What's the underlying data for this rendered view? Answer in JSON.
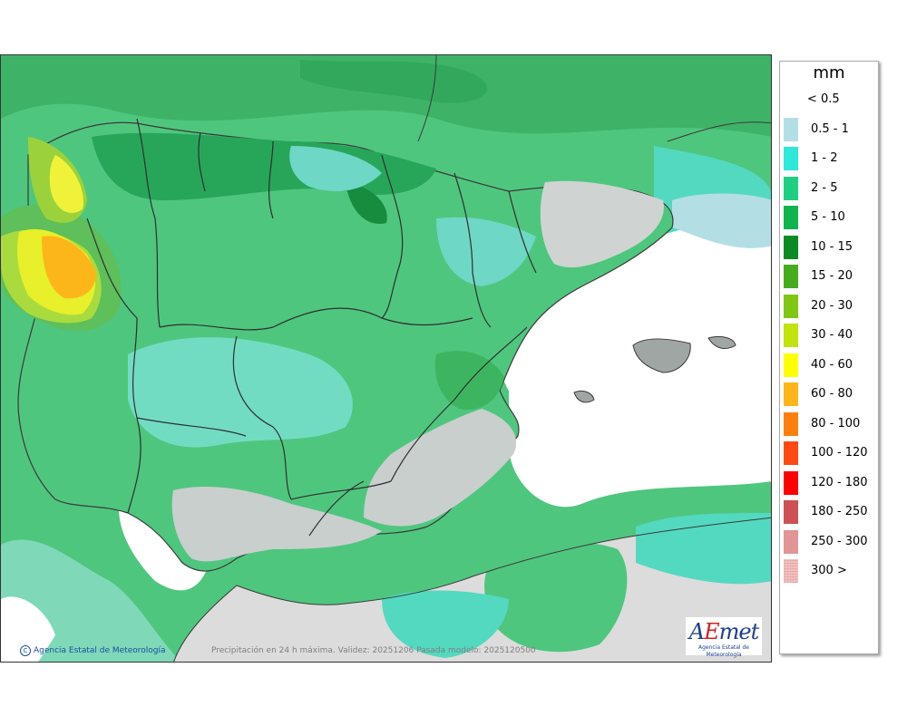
{
  "legend": {
    "unit": "mm",
    "items": [
      {
        "label": "< 0.5",
        "color": "#ffffff"
      },
      {
        "label": "0.5 - 1",
        "color": "#b3dfe4"
      },
      {
        "label": "1 - 2",
        "color": "#2ee8d9"
      },
      {
        "label": "2 - 5",
        "color": "#1ecf82"
      },
      {
        "label": "5 - 10",
        "color": "#10b44f"
      },
      {
        "label": "10 - 15",
        "color": "#0b8c22"
      },
      {
        "label": "15 - 20",
        "color": "#44ad1b"
      },
      {
        "label": "20 - 30",
        "color": "#7ec814"
      },
      {
        "label": "30 - 40",
        "color": "#c3e30d"
      },
      {
        "label": "40 - 60",
        "color": "#ffff00"
      },
      {
        "label": "60 - 80",
        "color": "#fdb619"
      },
      {
        "label": "80 - 100",
        "color": "#ff7f0c"
      },
      {
        "label": "100 - 120",
        "color": "#ff4a14"
      },
      {
        "label": "120 - 180",
        "color": "#ff0000"
      },
      {
        "label": "180 - 250",
        "color": "#cd5153"
      },
      {
        "label": "250 - 300",
        "color": "#e19595"
      },
      {
        "label": "300 >",
        "color": "#f5cccc"
      }
    ]
  },
  "credit": "Agencia Estatal de Meteorología",
  "caption": "Precipitación en 24 h máxima. Validez: 20251206 Pasada modelo: 2025120500",
  "logo": {
    "brand_a": "A",
    "brand_e": "E",
    "brand_rest": "met",
    "sub": "Agencia Estatal de Meteorología"
  }
}
